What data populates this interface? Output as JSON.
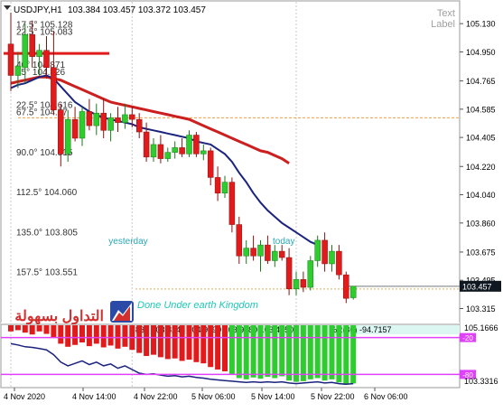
{
  "header": {
    "symbol": "USDJPY,H1",
    "ohlc": "103.384 103.457 103.372 103.457"
  },
  "text_label": {
    "line1": "Text",
    "line2": "Label"
  },
  "chart_data": {
    "type": "candlestick",
    "title": "USDJPY,H1",
    "ylim": [
      103.22,
      105.2
    ],
    "price_ticks": [
      105.13,
      104.95,
      104.765,
      104.585,
      104.405,
      104.22,
      104.04,
      103.86,
      103.675,
      103.495,
      103.315
    ],
    "time_ticks": [
      "4 Nov 2020",
      "4 Nov 14:00",
      "4 Nov 22:00",
      "5 Nov 06:00",
      "5 Nov 14:00",
      "5 Nov 22:00",
      "6 Nov 06:00"
    ],
    "current_price": "103.457",
    "candles": [
      {
        "o": 105.0,
        "h": 105.2,
        "l": 104.7,
        "c": 104.8
      },
      {
        "o": 104.8,
        "h": 104.95,
        "l": 104.72,
        "c": 104.86
      },
      {
        "o": 104.85,
        "h": 105.13,
        "l": 104.75,
        "c": 105.06
      },
      {
        "o": 105.06,
        "h": 105.15,
        "l": 104.85,
        "c": 104.92
      },
      {
        "o": 104.92,
        "h": 105.0,
        "l": 104.8,
        "c": 104.96
      },
      {
        "o": 104.96,
        "h": 105.05,
        "l": 104.78,
        "c": 104.85
      },
      {
        "o": 104.85,
        "h": 105.08,
        "l": 104.55,
        "c": 104.58
      },
      {
        "o": 104.58,
        "h": 104.62,
        "l": 104.22,
        "c": 104.3
      },
      {
        "o": 104.3,
        "h": 104.58,
        "l": 104.25,
        "c": 104.52
      },
      {
        "o": 104.52,
        "h": 104.6,
        "l": 104.38,
        "c": 104.4
      },
      {
        "o": 104.4,
        "h": 104.6,
        "l": 104.35,
        "c": 104.57
      },
      {
        "o": 104.57,
        "h": 104.65,
        "l": 104.45,
        "c": 104.48
      },
      {
        "o": 104.48,
        "h": 104.62,
        "l": 104.42,
        "c": 104.56
      },
      {
        "o": 104.56,
        "h": 104.65,
        "l": 104.4,
        "c": 104.45
      },
      {
        "o": 104.45,
        "h": 104.56,
        "l": 104.38,
        "c": 104.53
      },
      {
        "o": 104.53,
        "h": 104.6,
        "l": 104.44,
        "c": 104.5
      },
      {
        "o": 104.5,
        "h": 104.62,
        "l": 104.46,
        "c": 104.55
      },
      {
        "o": 104.55,
        "h": 104.6,
        "l": 104.47,
        "c": 104.52
      },
      {
        "o": 104.52,
        "h": 104.56,
        "l": 104.4,
        "c": 104.44
      },
      {
        "o": 104.44,
        "h": 104.5,
        "l": 104.25,
        "c": 104.28
      },
      {
        "o": 104.28,
        "h": 104.4,
        "l": 104.25,
        "c": 104.36
      },
      {
        "o": 104.36,
        "h": 104.42,
        "l": 104.24,
        "c": 104.27
      },
      {
        "o": 104.27,
        "h": 104.34,
        "l": 104.25,
        "c": 104.31
      },
      {
        "o": 104.31,
        "h": 104.38,
        "l": 104.27,
        "c": 104.34
      },
      {
        "o": 104.34,
        "h": 104.4,
        "l": 104.28,
        "c": 104.3
      },
      {
        "o": 104.3,
        "h": 104.45,
        "l": 104.28,
        "c": 104.42
      },
      {
        "o": 104.42,
        "h": 104.44,
        "l": 104.28,
        "c": 104.3
      },
      {
        "o": 104.3,
        "h": 104.36,
        "l": 104.26,
        "c": 104.32
      },
      {
        "o": 104.32,
        "h": 104.34,
        "l": 104.1,
        "c": 104.15
      },
      {
        "o": 104.15,
        "h": 104.22,
        "l": 104.0,
        "c": 104.05
      },
      {
        "o": 104.05,
        "h": 104.16,
        "l": 104.02,
        "c": 104.12
      },
      {
        "o": 104.12,
        "h": 104.15,
        "l": 103.8,
        "c": 103.85
      },
      {
        "o": 103.85,
        "h": 103.9,
        "l": 103.6,
        "c": 103.65
      },
      {
        "o": 103.65,
        "h": 103.75,
        "l": 103.6,
        "c": 103.7
      },
      {
        "o": 103.7,
        "h": 103.78,
        "l": 103.62,
        "c": 103.65
      },
      {
        "o": 103.65,
        "h": 103.75,
        "l": 103.55,
        "c": 103.72
      },
      {
        "o": 103.72,
        "h": 103.78,
        "l": 103.6,
        "c": 103.62
      },
      {
        "o": 103.62,
        "h": 103.72,
        "l": 103.58,
        "c": 103.68
      },
      {
        "o": 103.68,
        "h": 103.72,
        "l": 103.62,
        "c": 103.64
      },
      {
        "o": 103.64,
        "h": 103.7,
        "l": 103.4,
        "c": 103.44
      },
      {
        "o": 103.44,
        "h": 103.55,
        "l": 103.4,
        "c": 103.5
      },
      {
        "o": 103.5,
        "h": 103.55,
        "l": 103.42,
        "c": 103.45
      },
      {
        "o": 103.45,
        "h": 103.65,
        "l": 103.43,
        "c": 103.62
      },
      {
        "o": 103.62,
        "h": 103.78,
        "l": 103.58,
        "c": 103.75
      },
      {
        "o": 103.75,
        "h": 103.8,
        "l": 103.55,
        "c": 103.6
      },
      {
        "o": 103.6,
        "h": 103.72,
        "l": 103.55,
        "c": 103.68
      },
      {
        "o": 103.68,
        "h": 103.72,
        "l": 103.5,
        "c": 103.53
      },
      {
        "o": 103.53,
        "h": 103.55,
        "l": 103.35,
        "c": 103.38
      },
      {
        "o": 103.384,
        "h": 103.457,
        "l": 103.372,
        "c": 103.457
      }
    ],
    "ma_fast": [
      104.72,
      104.74,
      104.75,
      104.77,
      104.79,
      104.8,
      104.78,
      104.73,
      104.68,
      104.63,
      104.6,
      104.57,
      104.55,
      104.53,
      104.52,
      104.51,
      104.5,
      104.49,
      104.47,
      104.46,
      104.45,
      104.44,
      104.43,
      104.42,
      104.41,
      104.4,
      104.38,
      104.37,
      104.36,
      104.33,
      104.3,
      104.25,
      104.18,
      104.12,
      104.05,
      103.99,
      103.94,
      103.9,
      103.86,
      103.83,
      103.8,
      103.77,
      103.74,
      103.72
    ],
    "ma_slow": [
      104.75,
      104.76,
      104.77,
      104.78,
      104.79,
      104.79,
      104.78,
      104.77,
      104.75,
      104.73,
      104.71,
      104.69,
      104.67,
      104.65,
      104.63,
      104.62,
      104.61,
      104.6,
      104.59,
      104.58,
      104.57,
      104.56,
      104.55,
      104.54,
      104.53,
      104.52,
      104.5,
      104.48,
      104.46,
      104.44,
      104.42,
      104.4,
      104.38,
      104.36,
      104.34,
      104.32,
      104.31,
      104.29,
      104.27,
      104.24
    ],
    "fib_levels": [
      {
        "label": "17.5° 105.128",
        "value": 105.128
      },
      {
        "label": "22.5° 105.083",
        "value": 105.083
      },
      {
        "label": "40° 104.871",
        "value": 104.871
      },
      {
        "label": "45° 104.826",
        "value": 104.826
      },
      {
        "label": "22.5° 104.616",
        "value": 104.616
      },
      {
        "label": "67.5° 104.57",
        "value": 104.57
      },
      {
        "label": "90.0° 104.315",
        "value": 104.315
      },
      {
        "label": "112.5° 104.060",
        "value": 104.06
      },
      {
        "label": "135.0° 103.805",
        "value": 103.805
      },
      {
        "label": "157.5° 103.551",
        "value": 103.551
      }
    ],
    "resistance_level": 104.53,
    "red_level": 104.94,
    "day_separators": [
      {
        "candle_index": 0,
        "label": ""
      },
      {
        "candle_index": 17,
        "label": "yesterday"
      },
      {
        "candle_index": 40,
        "label": "today"
      }
    ],
    "watermark": "Done Under earth Kingdom",
    "indicator": {
      "name": "%R(80)",
      "readout": "832 103.8244 104.9790 103.9280 103.4150",
      "value": "-94.7157",
      "levels": [
        -20,
        -80
      ],
      "level_labels": [
        "-20",
        "-80"
      ],
      "axis_labels": [
        "105.1666",
        "103.3316"
      ],
      "bars": [
        -10,
        -8,
        -12,
        -15,
        -10,
        -14,
        -20,
        -30,
        -35,
        -32,
        -28,
        -34,
        -30,
        -36,
        -33,
        -38,
        -35,
        -40,
        -45,
        -50,
        -48,
        -52,
        -55,
        -54,
        -58,
        -56,
        -60,
        -62,
        -68,
        -72,
        -75,
        -80,
        -86,
        -88,
        -85,
        -87,
        -84,
        -86,
        -83,
        -90,
        -92,
        -91,
        -88,
        -86,
        -90,
        -88,
        -93,
        -95,
        -94.7
      ],
      "line": [
        -30,
        -32,
        -35,
        -36,
        -38,
        -40,
        -48,
        -60,
        -66,
        -62,
        -58,
        -64,
        -60,
        -66,
        -63,
        -70,
        -66,
        -72,
        -78,
        -80,
        -79,
        -81,
        -83,
        -82,
        -84,
        -83,
        -85,
        -86,
        -88,
        -89,
        -90,
        -91,
        -92,
        -93,
        -92,
        -93,
        -92,
        -93,
        -92,
        -94,
        -95,
        -94,
        -93,
        -92,
        -94,
        -93,
        -95,
        -96,
        -95
      ]
    }
  },
  "brand": {
    "arabic_text": "التداول بسهولة"
  },
  "colors": {
    "bull": "#2fcc2f",
    "bear": "#e11b1b",
    "ma_fast": "#1a237e",
    "ma_slow": "#cc1f1f",
    "level": "#e040fb",
    "grid": "#c8c8c8",
    "brand": "#d32f2f",
    "brand_blue": "#2b4aa8",
    "price_bg": "#0f1720"
  }
}
